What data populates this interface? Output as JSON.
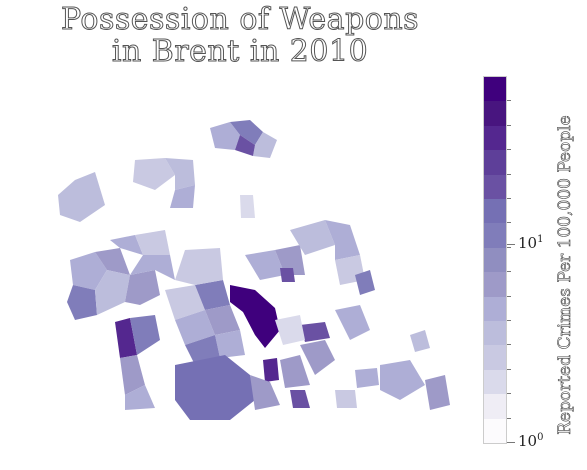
{
  "title_line1": "Possession of Weapons",
  "title_line2": "in Brent in 2010",
  "colorbar": {
    "label": "Reported Crimes Per 100,000 People",
    "scale": "log",
    "range": [
      1,
      60
    ],
    "ticks": [
      {
        "base": "10",
        "exp": "0",
        "value": 1
      },
      {
        "base": "10",
        "exp": "1",
        "value": 10
      }
    ],
    "colors": [
      "#fcfbfd",
      "#efedf5",
      "#dadaeb",
      "#c9c9e2",
      "#bcbddc",
      "#aeaed6",
      "#9e9ac8",
      "#908ec0",
      "#807dba",
      "#7570b4",
      "#6a51a3",
      "#5e3f99",
      "#54278f",
      "#48157f",
      "#3f007d"
    ]
  },
  "map": {
    "colors": {
      "min": "#fcfbfd",
      "max": "#3f007d"
    }
  }
}
